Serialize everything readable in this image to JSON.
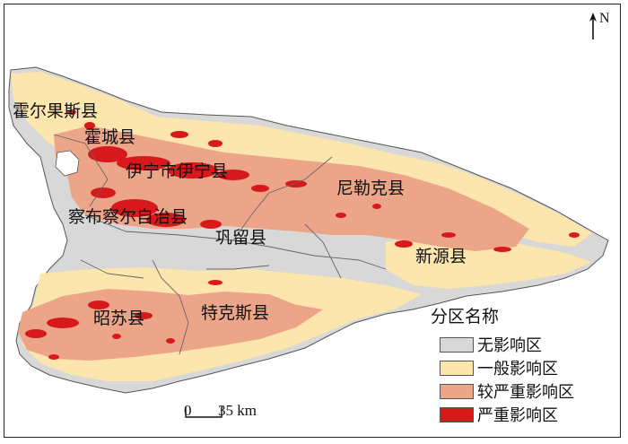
{
  "north_label": "N",
  "place_labels": [
    {
      "name": "霍尔果斯县"
    },
    {
      "name": "霍城县"
    },
    {
      "name": "伊宁市伊宁县"
    },
    {
      "name": "尼勒克县"
    },
    {
      "name": "察布察尔自治县"
    },
    {
      "name": "巩留县"
    },
    {
      "name": "新源县"
    },
    {
      "name": "昭苏县"
    },
    {
      "name": "特克斯县"
    }
  ],
  "legend": {
    "title": "分区名称",
    "items": [
      {
        "label": "无影响区",
        "color": "#d8d8d8"
      },
      {
        "label": "一般影响区",
        "color": "#fce6ad"
      },
      {
        "label": "较严重影响区",
        "color": "#eda58a"
      },
      {
        "label": "严重影响区",
        "color": "#d7191c"
      }
    ]
  },
  "scale_bar": {
    "start": "0",
    "end": "35 km"
  }
}
